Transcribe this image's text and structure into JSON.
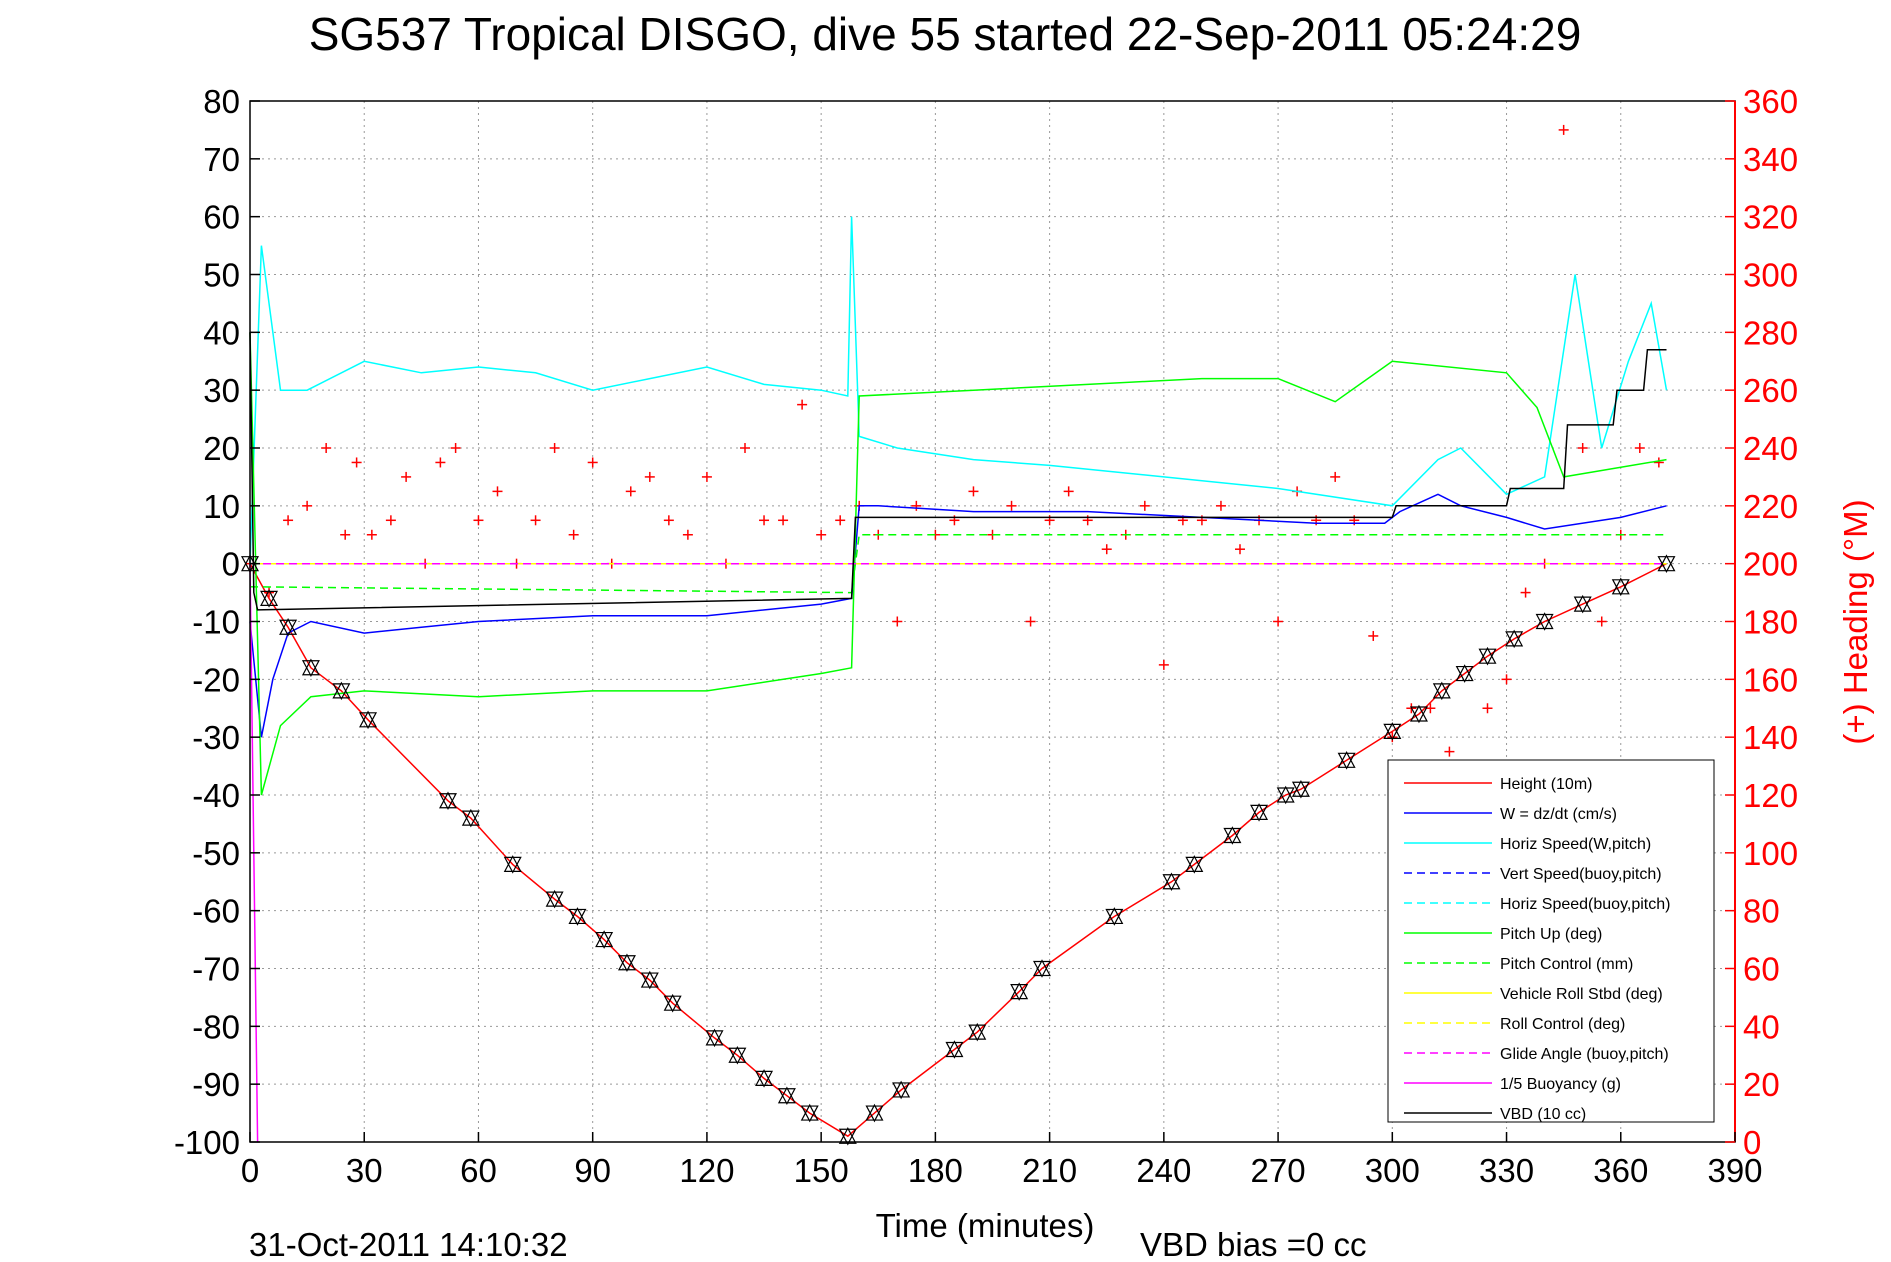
{
  "chart_data": {
    "type": "line",
    "title": "SG537 Tropical DISGO, dive 55 started 22-Sep-2011 05:24:29",
    "xlabel": "Time (minutes)",
    "ylabel": "",
    "y2label": "(+) Heading (°M)",
    "xlim": [
      0,
      390
    ],
    "ylim": [
      -100,
      80
    ],
    "y2lim": [
      0,
      360
    ],
    "xticks": [
      "0",
      "30",
      "60",
      "90",
      "120",
      "150",
      "180",
      "210",
      "240",
      "270",
      "300",
      "330",
      "360",
      "390"
    ],
    "yticks": [
      "80",
      "70",
      "60",
      "50",
      "40",
      "30",
      "20",
      "10",
      "0",
      "-10",
      "-20",
      "-30",
      "-40",
      "-50",
      "-60",
      "-70",
      "-80",
      "-90",
      "-100"
    ],
    "y2ticks": [
      "360",
      "340",
      "320",
      "300",
      "280",
      "260",
      "240",
      "220",
      "200",
      "180",
      "160",
      "140",
      "120",
      "100",
      "80",
      "60",
      "40",
      "20",
      "0"
    ],
    "grid": true,
    "legend_position": "bottom-right",
    "footer_left": "31-Oct-2011 14:10:32",
    "footer_right": "VBD bias =0 cc",
    "series": [
      {
        "name": "Height (10m)",
        "color": "#ff0000",
        "style": "solid",
        "x": [
          0,
          5,
          10,
          16,
          24,
          31,
          52,
          58,
          69,
          80,
          86,
          93,
          99,
          105,
          111,
          122,
          128,
          135,
          141,
          147,
          157,
          164,
          171,
          185,
          191,
          202,
          208,
          227,
          242,
          248,
          258,
          265,
          272,
          276,
          288,
          300,
          307,
          313,
          319,
          325,
          332,
          340,
          350,
          360,
          372
        ],
        "y": [
          0,
          -6,
          -11,
          -18,
          -22,
          -27,
          -41,
          -44,
          -52,
          -58,
          -61,
          -65,
          -69,
          -72,
          -76,
          -82,
          -85,
          -89,
          -92,
          -95,
          -99,
          -95,
          -91,
          -84,
          -81,
          -74,
          -70,
          -61,
          -55,
          -52,
          -47,
          -43,
          -40,
          -39,
          -34,
          -29,
          -26,
          -22,
          -19,
          -16,
          -13,
          -10,
          -7,
          -4,
          0
        ]
      },
      {
        "name": "W = dz/dt (cm/s)",
        "color": "#0000ff",
        "style": "solid",
        "x": [
          0,
          3,
          6,
          10,
          16,
          30,
          45,
          60,
          90,
          120,
          150,
          158,
          160,
          165,
          190,
          220,
          250,
          280,
          298,
          302,
          312,
          318,
          330,
          340,
          360,
          372
        ],
        "y": [
          -10,
          -30,
          -20,
          -12,
          -10,
          -12,
          -11,
          -10,
          -9,
          -9,
          -7,
          -6,
          10,
          10,
          9,
          9,
          8,
          7,
          7,
          9,
          12,
          10,
          8,
          6,
          8,
          10
        ]
      },
      {
        "name": "Horiz Speed(W,pitch)",
        "color": "#00ffff",
        "style": "solid",
        "x": [
          0,
          3,
          8,
          15,
          30,
          45,
          60,
          75,
          90,
          105,
          120,
          135,
          150,
          157,
          158,
          160,
          170,
          190,
          210,
          240,
          270,
          300,
          312,
          318,
          330,
          340,
          348,
          355,
          362,
          368,
          372
        ],
        "y": [
          0,
          55,
          30,
          30,
          35,
          33,
          34,
          33,
          30,
          32,
          34,
          31,
          30,
          29,
          60,
          22,
          20,
          18,
          17,
          15,
          13,
          10,
          18,
          20,
          12,
          15,
          50,
          20,
          35,
          45,
          30
        ]
      },
      {
        "name": "Vert Speed(buoy,pitch)",
        "color": "#0000ff",
        "style": "dash",
        "x": [
          0,
          372
        ],
        "y": [
          0,
          0
        ]
      },
      {
        "name": "Horiz Speed(buoy,pitch)",
        "color": "#00ffff",
        "style": "dash",
        "x": [
          0,
          372
        ],
        "y": [
          0,
          0
        ]
      },
      {
        "name": "Pitch Up (deg)",
        "color": "#00ff00",
        "style": "solid",
        "x": [
          0,
          3,
          8,
          16,
          30,
          60,
          90,
          120,
          150,
          158,
          160,
          190,
          220,
          250,
          270,
          285,
          300,
          330,
          338,
          345,
          372
        ],
        "y": [
          40,
          -40,
          -28,
          -23,
          -22,
          -23,
          -22,
          -22,
          -19,
          -18,
          29,
          30,
          31,
          32,
          32,
          28,
          35,
          33,
          27,
          15,
          18
        ]
      },
      {
        "name": "Pitch Control (mm)",
        "color": "#00ff00",
        "style": "dash",
        "x": [
          0,
          158,
          160,
          372
        ],
        "y": [
          -4,
          -5,
          5,
          5
        ]
      },
      {
        "name": "Vehicle Roll Stbd (deg)",
        "color": "#ffff00",
        "style": "solid",
        "x": [
          0,
          372
        ],
        "y": [
          0,
          0
        ]
      },
      {
        "name": "Roll Control (deg)",
        "color": "#ffff00",
        "style": "dash",
        "x": [
          0,
          372
        ],
        "y": [
          0,
          0
        ]
      },
      {
        "name": "Glide Angle (buoy,pitch)",
        "color": "#ff00ff",
        "style": "dash",
        "x": [
          0,
          372
        ],
        "y": [
          0,
          0
        ]
      },
      {
        "name": "1/5 Buoyancy (g)",
        "color": "#ff00ff",
        "style": "solid",
        "x": [
          0,
          1,
          2
        ],
        "y": [
          0,
          -50,
          -100
        ]
      },
      {
        "name": "VBD (10 cc)",
        "color": "#000000",
        "style": "solid",
        "x": [
          0,
          1,
          2,
          158,
          159,
          300,
          301,
          330,
          331,
          345,
          346,
          358,
          359,
          366,
          367,
          372
        ],
        "y": [
          40,
          -5,
          -8,
          -6,
          8,
          8,
          10,
          10,
          13,
          13,
          24,
          24,
          30,
          30,
          37,
          37
        ]
      }
    ],
    "heading_series": {
      "name": "Heading",
      "color": "#ff0000",
      "marker": "+",
      "x": [
        0,
        5,
        10,
        15,
        20,
        25,
        28,
        32,
        37,
        41,
        46,
        50,
        54,
        60,
        65,
        70,
        75,
        80,
        85,
        90,
        95,
        100,
        105,
        110,
        115,
        120,
        125,
        130,
        135,
        140,
        145,
        150,
        155,
        160,
        165,
        170,
        175,
        180,
        185,
        190,
        195,
        200,
        205,
        210,
        215,
        220,
        225,
        230,
        235,
        240,
        245,
        250,
        255,
        260,
        265,
        270,
        275,
        280,
        285,
        290,
        295,
        300,
        305,
        310,
        315,
        320,
        325,
        330,
        335,
        340,
        345,
        350,
        355,
        360,
        365,
        370
      ],
      "y": [
        200,
        190,
        215,
        220,
        240,
        210,
        235,
        210,
        215,
        230,
        200,
        235,
        240,
        215,
        225,
        200,
        215,
        240,
        210,
        235,
        200,
        225,
        230,
        215,
        210,
        230,
        200,
        240,
        215,
        215,
        255,
        210,
        215,
        220,
        210,
        180,
        220,
        210,
        215,
        225,
        210,
        220,
        180,
        215,
        225,
        215,
        205,
        210,
        220,
        165,
        215,
        215,
        220,
        205,
        215,
        180,
        225,
        215,
        230,
        215,
        175,
        140,
        150,
        150,
        135,
        130,
        150,
        160,
        190,
        200,
        350,
        240,
        180,
        210,
        240,
        235
      ]
    },
    "position_markers": {
      "x": [
        0,
        5,
        10,
        16,
        24,
        31,
        52,
        58,
        69,
        80,
        86,
        93,
        99,
        105,
        111,
        122,
        128,
        135,
        141,
        147,
        157,
        164,
        171,
        185,
        191,
        202,
        208,
        227,
        242,
        248,
        258,
        265,
        272,
        276,
        288,
        300,
        307,
        313,
        319,
        325,
        332,
        340,
        350,
        360,
        372
      ],
      "y": [
        0,
        -6,
        -11,
        -18,
        -22,
        -27,
        -41,
        -44,
        -52,
        -58,
        -61,
        -65,
        -69,
        -72,
        -76,
        -82,
        -85,
        -89,
        -92,
        -95,
        -99,
        -95,
        -91,
        -84,
        -81,
        -74,
        -70,
        -61,
        -55,
        -52,
        -47,
        -43,
        -40,
        -39,
        -34,
        -29,
        -26,
        -22,
        -19,
        -16,
        -13,
        -10,
        -7,
        -4,
        0
      ]
    }
  }
}
